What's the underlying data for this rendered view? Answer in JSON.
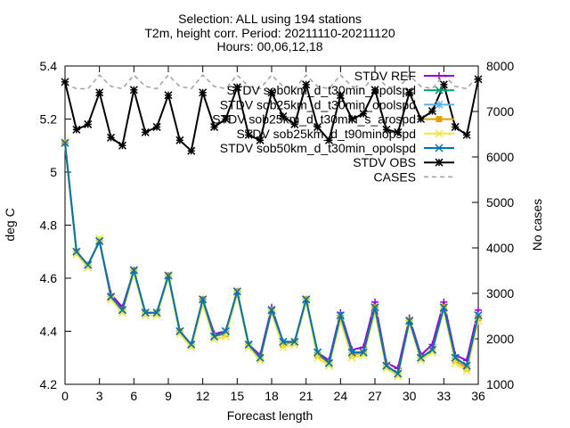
{
  "chart_data": {
    "type": "line",
    "title": [
      "Selection: ALL using    194 stations",
      "T2m, height corr.   Period: 20211110-20211120",
      "Hours: 00,06,12,18"
    ],
    "xlabel": "Forecast length",
    "ylabel": "deg C",
    "y2label": "No cases",
    "xlim": [
      0,
      36
    ],
    "ylim": [
      4.2,
      5.4
    ],
    "y2lim": [
      1000,
      8000
    ],
    "xticks": [
      0,
      3,
      6,
      9,
      12,
      15,
      18,
      21,
      24,
      27,
      30,
      33,
      36
    ],
    "yticks": [
      4.2,
      4.4,
      4.6,
      4.8,
      5,
      5.2,
      5.4
    ],
    "y2ticks": [
      1000,
      2000,
      3000,
      4000,
      5000,
      6000,
      7000,
      8000
    ],
    "legend_position": "top-right",
    "x": [
      0,
      1,
      2,
      3,
      4,
      5,
      6,
      7,
      8,
      9,
      10,
      11,
      12,
      13,
      14,
      15,
      16,
      17,
      18,
      19,
      20,
      21,
      22,
      23,
      24,
      25,
      26,
      27,
      28,
      29,
      30,
      31,
      32,
      33,
      34,
      35,
      36
    ],
    "series": [
      {
        "name": "STDV REF",
        "color": "#9400d3",
        "marker": "plus",
        "values": [
          5.11,
          4.7,
          4.65,
          4.74,
          4.54,
          4.49,
          4.63,
          4.47,
          4.47,
          4.61,
          4.4,
          4.35,
          4.52,
          4.39,
          4.4,
          4.55,
          4.35,
          4.31,
          4.49,
          4.36,
          4.36,
          4.52,
          4.32,
          4.29,
          4.47,
          4.33,
          4.34,
          4.51,
          4.28,
          4.26,
          4.45,
          4.31,
          4.35,
          4.51,
          4.31,
          4.29,
          4.48
        ]
      },
      {
        "name": "STDV sob0km_d_t30min_opolspd",
        "color": "#009e73",
        "marker": "x",
        "values": [
          5.11,
          4.7,
          4.65,
          4.74,
          4.53,
          4.48,
          4.63,
          4.47,
          4.47,
          4.61,
          4.4,
          4.35,
          4.52,
          4.38,
          4.4,
          4.55,
          4.35,
          4.3,
          4.48,
          4.36,
          4.36,
          4.52,
          4.32,
          4.28,
          4.46,
          4.32,
          4.32,
          4.49,
          4.27,
          4.24,
          4.44,
          4.3,
          4.33,
          4.49,
          4.3,
          4.27,
          4.46
        ]
      },
      {
        "name": "STDV sob25km_d_t30min_opolspd",
        "color": "#56b4e9",
        "marker": "asterisk",
        "values": [
          5.11,
          4.7,
          4.65,
          4.74,
          4.53,
          4.48,
          4.63,
          4.47,
          4.47,
          4.61,
          4.4,
          4.35,
          4.52,
          4.38,
          4.4,
          4.55,
          4.35,
          4.3,
          4.48,
          4.36,
          4.36,
          4.52,
          4.32,
          4.28,
          4.46,
          4.32,
          4.32,
          4.49,
          4.27,
          4.24,
          4.44,
          4.3,
          4.33,
          4.49,
          4.3,
          4.27,
          4.46
        ]
      },
      {
        "name": "STDV sob25km_d_t30min_s_arospd",
        "color": "#e69f00",
        "marker": "square",
        "values": [
          5.11,
          4.7,
          4.65,
          4.74,
          4.53,
          4.48,
          4.63,
          4.47,
          4.47,
          4.61,
          4.4,
          4.35,
          4.52,
          4.38,
          4.39,
          4.55,
          4.35,
          4.3,
          4.48,
          4.35,
          4.36,
          4.52,
          4.31,
          4.28,
          4.45,
          4.31,
          4.32,
          4.49,
          4.27,
          4.24,
          4.44,
          4.3,
          4.33,
          4.49,
          4.29,
          4.26,
          4.45
        ]
      },
      {
        "name": "STDV sob25km_d_t90minopspd",
        "color": "#f0e442",
        "marker": "x",
        "values": [
          5.11,
          4.69,
          4.64,
          4.75,
          4.52,
          4.47,
          4.62,
          4.46,
          4.46,
          4.6,
          4.39,
          4.34,
          4.5,
          4.37,
          4.38,
          4.54,
          4.34,
          4.29,
          4.47,
          4.34,
          4.35,
          4.51,
          4.3,
          4.27,
          4.44,
          4.3,
          4.31,
          4.47,
          4.26,
          4.23,
          4.43,
          4.29,
          4.32,
          4.48,
          4.28,
          4.25,
          4.44
        ]
      },
      {
        "name": "STDV sob50km_d_t30min_opolspd",
        "color": "#0072b2",
        "marker": "x",
        "values": [
          5.11,
          4.7,
          4.65,
          4.74,
          4.53,
          4.48,
          4.63,
          4.47,
          4.47,
          4.61,
          4.4,
          4.35,
          4.52,
          4.38,
          4.4,
          4.55,
          4.35,
          4.3,
          4.48,
          4.36,
          4.36,
          4.52,
          4.32,
          4.28,
          4.46,
          4.32,
          4.32,
          4.49,
          4.27,
          4.24,
          4.44,
          4.3,
          4.33,
          4.49,
          4.3,
          4.27,
          4.46
        ]
      },
      {
        "name": "STDV OBS",
        "color": "#000000",
        "marker": "asterisk",
        "values": [
          5.34,
          5.16,
          5.18,
          5.3,
          5.13,
          5.1,
          5.31,
          5.15,
          5.17,
          5.29,
          5.12,
          5.08,
          5.3,
          5.17,
          5.2,
          5.32,
          5.14,
          5.12,
          5.3,
          5.21,
          5.18,
          5.33,
          5.17,
          5.12,
          5.29,
          5.2,
          5.22,
          5.31,
          5.16,
          5.15,
          5.3,
          5.2,
          5.23,
          5.33,
          5.17,
          5.14,
          5.35
        ]
      },
      {
        "name": "CASES",
        "color": "#a0a0a0",
        "marker": "none",
        "dashed": true,
        "axis": "y2",
        "values": [
          7600,
          7500,
          7500,
          7800,
          7550,
          7500,
          7800,
          7550,
          7500,
          7800,
          7550,
          7500,
          7800,
          7550,
          7500,
          7800,
          7550,
          7500,
          7800,
          7550,
          7500,
          7800,
          7550,
          7500,
          7800,
          7550,
          7500,
          7800,
          7550,
          7500,
          7800,
          7550,
          7500,
          7800,
          7550,
          7500,
          7800
        ]
      }
    ]
  }
}
